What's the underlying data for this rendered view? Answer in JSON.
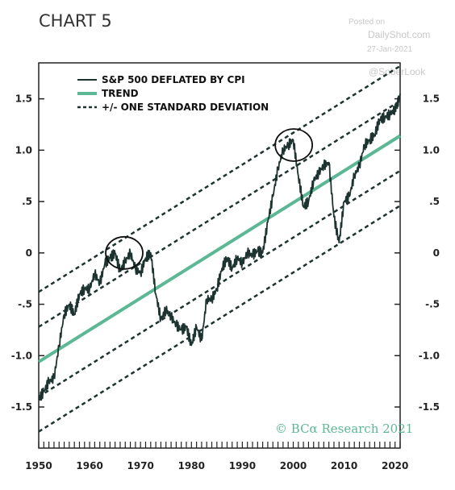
{
  "watermark": {
    "posted_on": "Posted on",
    "site": "DailyShot.com",
    "date": "27-Jan-2021",
    "handle": "@SoberLook"
  },
  "copyright": "© BCα Research 2021",
  "colors": {
    "series": "#1d3330",
    "trend": "#5cb894",
    "band": "#1d3330",
    "copyright": "#5cb894"
  },
  "chart_data": {
    "type": "line",
    "title": "CHART 5",
    "xlim": [
      1950,
      2021
    ],
    "ylim": [
      -1.9,
      1.85
    ],
    "x_ticks": [
      "1950",
      "1960",
      "1970",
      "1980",
      "1990",
      "2000",
      "2010",
      "2020"
    ],
    "x_tick_values": [
      1950,
      1960,
      1970,
      1980,
      1990,
      2000,
      2010,
      2020
    ],
    "y_ticks": [
      "1.5",
      "1.0",
      ".5",
      "0",
      "-.5",
      "-1.0",
      "-1.5"
    ],
    "y_tick_values": [
      1.5,
      1.0,
      0.5,
      0,
      -0.5,
      -1.0,
      -1.5
    ],
    "legend": {
      "position": "top-left",
      "entries": [
        "S&P 500 DEFLATED BY CPI",
        "TREND",
        "+/- ONE STANDARD DEVIATION"
      ]
    },
    "series": [
      {
        "name": "S&P 500 DEFLATED BY CPI",
        "x": [
          1950,
          1951,
          1952,
          1953,
          1954,
          1955,
          1956,
          1957,
          1958,
          1959,
          1960,
          1961,
          1962,
          1963,
          1964,
          1965,
          1966,
          1967,
          1968,
          1969,
          1970,
          1971,
          1972,
          1973,
          1974,
          1975,
          1976,
          1977,
          1978,
          1979,
          1980,
          1981,
          1982,
          1983,
          1984,
          1985,
          1986,
          1987,
          1988,
          1989,
          1990,
          1991,
          1992,
          1993,
          1994,
          1995,
          1996,
          1997,
          1998,
          1999,
          2000,
          2001,
          2002,
          2003,
          2004,
          2005,
          2006,
          2007,
          2008,
          2009,
          2010,
          2011,
          2012,
          2013,
          2014,
          2015,
          2016,
          2017,
          2018,
          2019,
          2020,
          2020.5,
          2021
        ],
        "values": [
          -1.42,
          -1.35,
          -1.25,
          -1.22,
          -0.9,
          -0.6,
          -0.5,
          -0.6,
          -0.4,
          -0.35,
          -0.35,
          -0.2,
          -0.3,
          -0.1,
          -0.05,
          0.0,
          -0.18,
          -0.08,
          0.0,
          -0.15,
          -0.2,
          -0.05,
          0.0,
          -0.4,
          -0.65,
          -0.55,
          -0.62,
          -0.7,
          -0.75,
          -0.72,
          -0.9,
          -0.72,
          -0.85,
          -0.45,
          -0.45,
          -0.35,
          -0.15,
          -0.05,
          -0.15,
          -0.05,
          -0.1,
          0.0,
          -0.02,
          0.02,
          0.0,
          0.3,
          0.55,
          0.82,
          1.0,
          1.05,
          1.1,
          0.75,
          0.45,
          0.5,
          0.7,
          0.78,
          0.85,
          0.88,
          0.35,
          0.1,
          0.5,
          0.55,
          0.75,
          0.85,
          1.05,
          1.1,
          1.15,
          1.3,
          1.32,
          1.35,
          1.4,
          1.45,
          1.55
        ]
      },
      {
        "name": "TREND",
        "x": [
          1950,
          2021
        ],
        "values": [
          -1.06,
          1.14
        ]
      },
      {
        "name": "+/- ONE STANDARD DEVIATION (upper 2)",
        "x": [
          1950,
          2021
        ],
        "values": [
          -0.38,
          1.82
        ]
      },
      {
        "name": "+/- ONE STANDARD DEVIATION (upper 1)",
        "x": [
          1950,
          2021
        ],
        "values": [
          -0.72,
          1.48
        ]
      },
      {
        "name": "+/- ONE STANDARD DEVIATION (lower 1)",
        "x": [
          1950,
          2021
        ],
        "values": [
          -1.4,
          0.8
        ]
      },
      {
        "name": "+/- ONE STANDARD DEVIATION (lower 2)",
        "x": [
          1950,
          2021
        ],
        "values": [
          -1.74,
          0.46
        ]
      }
    ],
    "annotations": [
      {
        "type": "circle",
        "x": 1966.8,
        "y": 0.0
      },
      {
        "type": "circle",
        "x": 2000.1,
        "y": 1.05
      }
    ],
    "grid": false
  }
}
